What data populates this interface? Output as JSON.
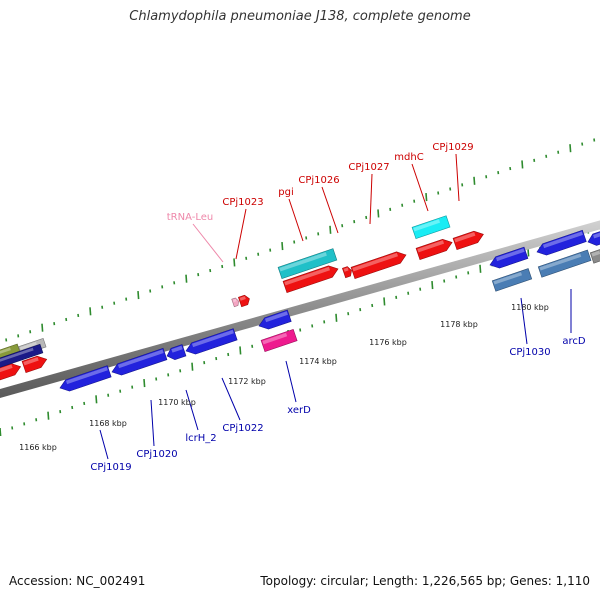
{
  "title": "Chlamydophila pneumoniae J138, complete genome",
  "footer": {
    "accession": "Accession: NC_002491",
    "summary": "Topology: circular; Length: 1,226,565 bp; Genes: 1,110"
  },
  "scale_labels": [
    "1166 kbp",
    "1168 kbp",
    "1170 kbp",
    "1172 kbp",
    "1174 kbp",
    "1176 kbp",
    "1178 kbp",
    "1180 kbp"
  ],
  "top_labels": [
    "tRNA-Leu",
    "CPj1023",
    "pgi",
    "CPj1026",
    "CPj1027",
    "mdhC",
    "CPj1029"
  ],
  "bottom_labels": [
    "CPj1019",
    "CPj1020",
    "lcrH_2",
    "CPj1022",
    "xerD",
    "CPj1030",
    "arcD"
  ],
  "colors": {
    "backbone": "#9a9a9a",
    "tick": "#2e8b2e",
    "forward_gene": "#ee1111",
    "reverse_gene": "#2222dd",
    "teal_gene": "#20c0c8",
    "cyan_gene": "#19ecf4",
    "pink_gene": "#ee1a8e",
    "steel_gene": "#4a7db4",
    "forward_label": "#cc0000",
    "reverse_label": "#0000aa",
    "trna_label": "#ee88aa"
  }
}
